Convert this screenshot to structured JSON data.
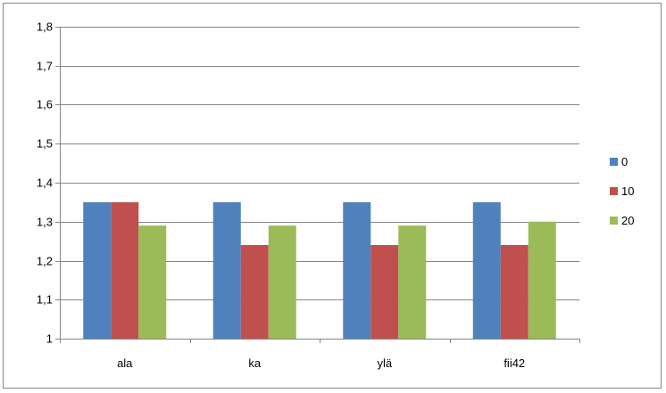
{
  "chart_data": {
    "type": "bar",
    "categories": [
      "ala",
      "ka",
      "ylä",
      "fii42"
    ],
    "series": [
      {
        "name": "0",
        "color": "#4F81BD",
        "values": [
          1.35,
          1.35,
          1.35,
          1.35
        ]
      },
      {
        "name": "10",
        "color": "#C0504D",
        "values": [
          1.35,
          1.24,
          1.24,
          1.24
        ]
      },
      {
        "name": "20",
        "color": "#9BBB59",
        "values": [
          1.29,
          1.29,
          1.29,
          1.3
        ]
      }
    ],
    "ylim": [
      1,
      1.8
    ],
    "yticks": [
      "1",
      "1,1",
      "1,2",
      "1,3",
      "1,4",
      "1,5",
      "1,6",
      "1,7",
      "1,8"
    ],
    "ytick_values": [
      1,
      1.1,
      1.2,
      1.3,
      1.4,
      1.5,
      1.6,
      1.7,
      1.8
    ],
    "grid": true,
    "legend": "right",
    "xlabel": "",
    "ylabel": ""
  }
}
